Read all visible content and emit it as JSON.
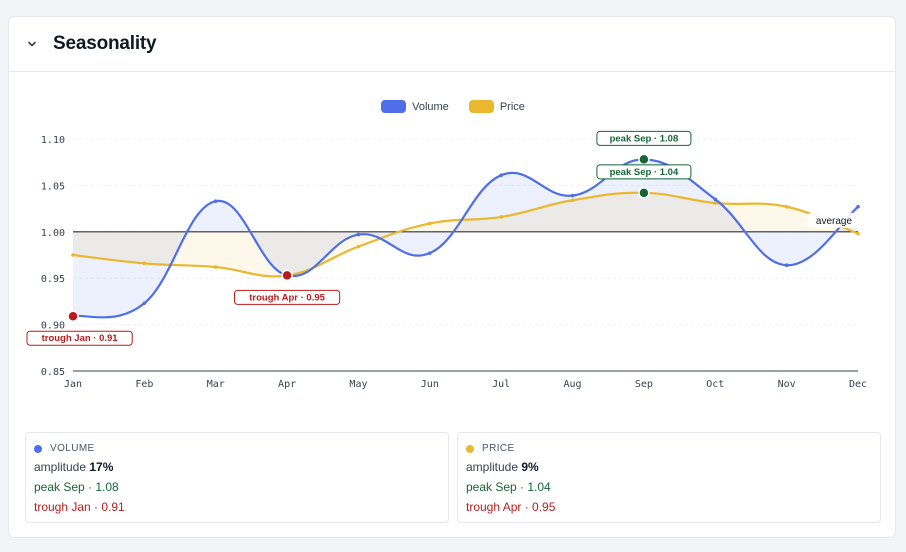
{
  "section": {
    "title": "Seasonality"
  },
  "legend": [
    {
      "name": "Volume",
      "color": "#4f6fe8"
    },
    {
      "name": "Price",
      "color": "#e9b82e"
    }
  ],
  "chart_data": {
    "type": "line",
    "categories": [
      "Jan",
      "Feb",
      "Mar",
      "Apr",
      "May",
      "Jun",
      "Jul",
      "Aug",
      "Sep",
      "Oct",
      "Nov",
      "Dec"
    ],
    "series": [
      {
        "name": "Volume",
        "color": "#4f6fe8",
        "values": [
          0.909,
          0.923,
          1.033,
          0.953,
          0.997,
          0.977,
          1.061,
          1.039,
          1.078,
          1.035,
          0.964,
          1.027
        ]
      },
      {
        "name": "Price",
        "color": "#e9b82e",
        "values": [
          0.975,
          0.966,
          0.962,
          0.953,
          0.984,
          1.009,
          1.016,
          1.034,
          1.042,
          1.031,
          1.027,
          0.998
        ]
      }
    ],
    "ylim": [
      0.85,
      1.1
    ],
    "yticks": [
      "0.85",
      "0.90",
      "0.95",
      "1.00",
      "1.05",
      "1.10"
    ],
    "baseline": 1.0,
    "baseline_label": "average",
    "annotations": [
      {
        "text": "peak Sep · 1.08",
        "series": "Volume",
        "index": 8,
        "kind": "peak"
      },
      {
        "text": "peak Sep · 1.04",
        "series": "Price",
        "index": 8,
        "kind": "peak"
      },
      {
        "text": "trough Jan · 0.91",
        "series": "Volume",
        "index": 0,
        "kind": "trough"
      },
      {
        "text": "trough Apr · 0.95",
        "series": "Price",
        "index": 3,
        "kind": "trough"
      }
    ],
    "grid": true
  },
  "stats": [
    {
      "name": "VOLUME",
      "color": "#4f6fe8",
      "amplitude_label": "amplitude",
      "amplitude": "17%",
      "peak": "peak Sep · 1.08",
      "trough": "trough Jan · 0.91"
    },
    {
      "name": "PRICE",
      "color": "#e9b82e",
      "amplitude_label": "amplitude",
      "amplitude": "9%",
      "peak": "peak Sep · 1.04",
      "trough": "trough Apr · 0.95"
    }
  ],
  "colors": {
    "peak": "#166534",
    "trough": "#b91c1c",
    "baseline": "#333333"
  }
}
